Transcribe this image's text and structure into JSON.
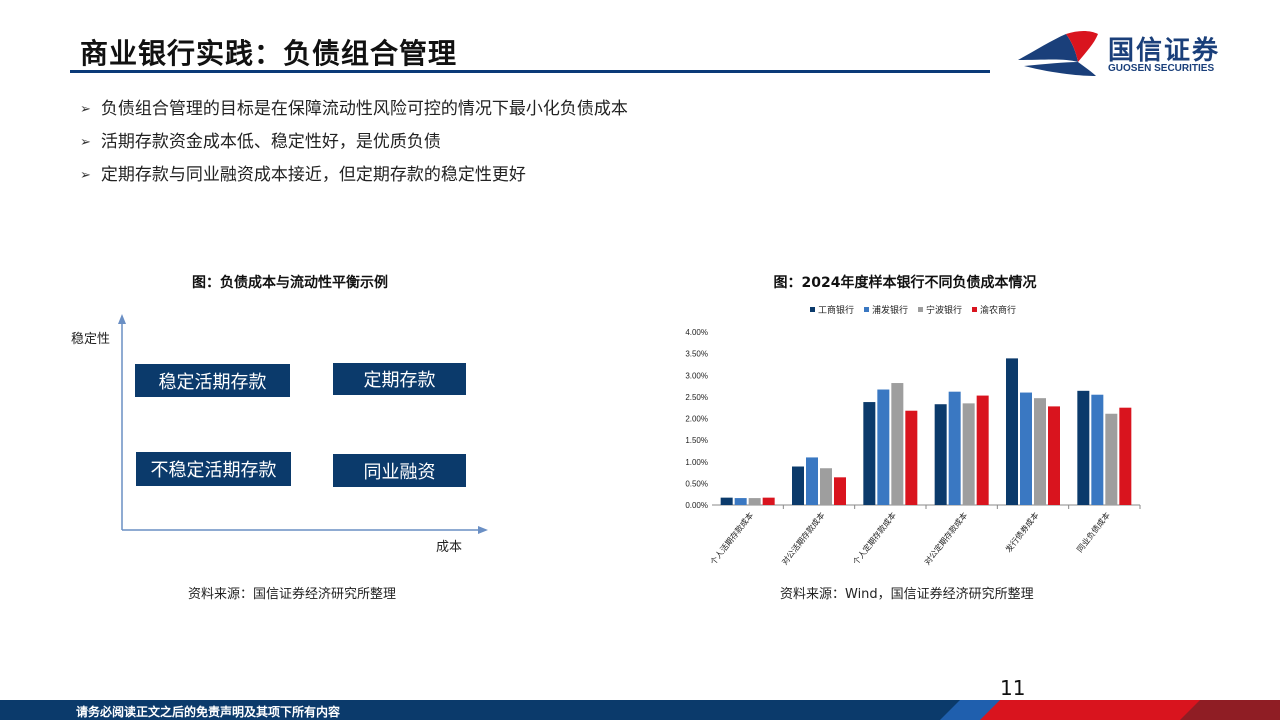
{
  "header": {
    "title": "商业银行实践：负债组合管理",
    "logo_cn": "国信证券",
    "logo_en": "GUOSEN SECURITIES"
  },
  "bullets": [
    "负债组合管理的目标是在保障流动性风险可控的情况下最小化负债成本",
    "活期存款资金成本低、稳定性好，是优质负债",
    "定期存款与同业融资成本接近，但定期存款的稳定性更好"
  ],
  "left_figure": {
    "caption": "图：负债成本与流动性平衡示例",
    "y_axis_label": "稳定性",
    "x_axis_label": "成本",
    "boxes": [
      "稳定活期存款",
      "定期存款",
      "不稳定活期存款",
      "同业融资"
    ],
    "source": "资料来源：国信证券经济研究所整理"
  },
  "right_figure": {
    "caption": "图：2024年度样本银行不同负债成本情况",
    "source": "资料来源：Wind，国信证券经济研究所整理"
  },
  "chart_data": {
    "type": "bar",
    "title": "图：2024年度样本银行不同负债成本情况",
    "categories": [
      "个人活期存款成本",
      "对公活期存款成本",
      "个人定期存款成本",
      "对公定期存款成本",
      "发行债券成本",
      "同业负债成本"
    ],
    "series": [
      {
        "name": "工商银行",
        "color": "#0b3a6b",
        "values": [
          0.17,
          0.89,
          2.38,
          2.33,
          3.39,
          2.64
        ]
      },
      {
        "name": "浦发银行",
        "color": "#3a78c2",
        "values": [
          0.16,
          1.1,
          2.67,
          2.62,
          2.6,
          2.55
        ]
      },
      {
        "name": "宁波银行",
        "color": "#9e9e9e",
        "values": [
          0.16,
          0.85,
          2.82,
          2.35,
          2.47,
          2.11
        ]
      },
      {
        "name": "渝农商行",
        "color": "#d9141e",
        "values": [
          0.17,
          0.64,
          2.18,
          2.53,
          2.28,
          2.25
        ]
      }
    ],
    "yticks": [
      "4.00%",
      "3.50%",
      "3.00%",
      "2.50%",
      "2.00%",
      "1.50%",
      "1.00%",
      "0.50%",
      "0.00%"
    ],
    "ylim": [
      0,
      4.0
    ],
    "grid": false,
    "legend": "top"
  },
  "page_number": "11",
  "footer": {
    "disclaimer": "请务必阅读正文之后的免责声明及其项下所有内容"
  },
  "colors": {
    "navy": "#0b3a6b",
    "brand_blue": "#1a3f7a",
    "brand_red": "#d9141e"
  }
}
